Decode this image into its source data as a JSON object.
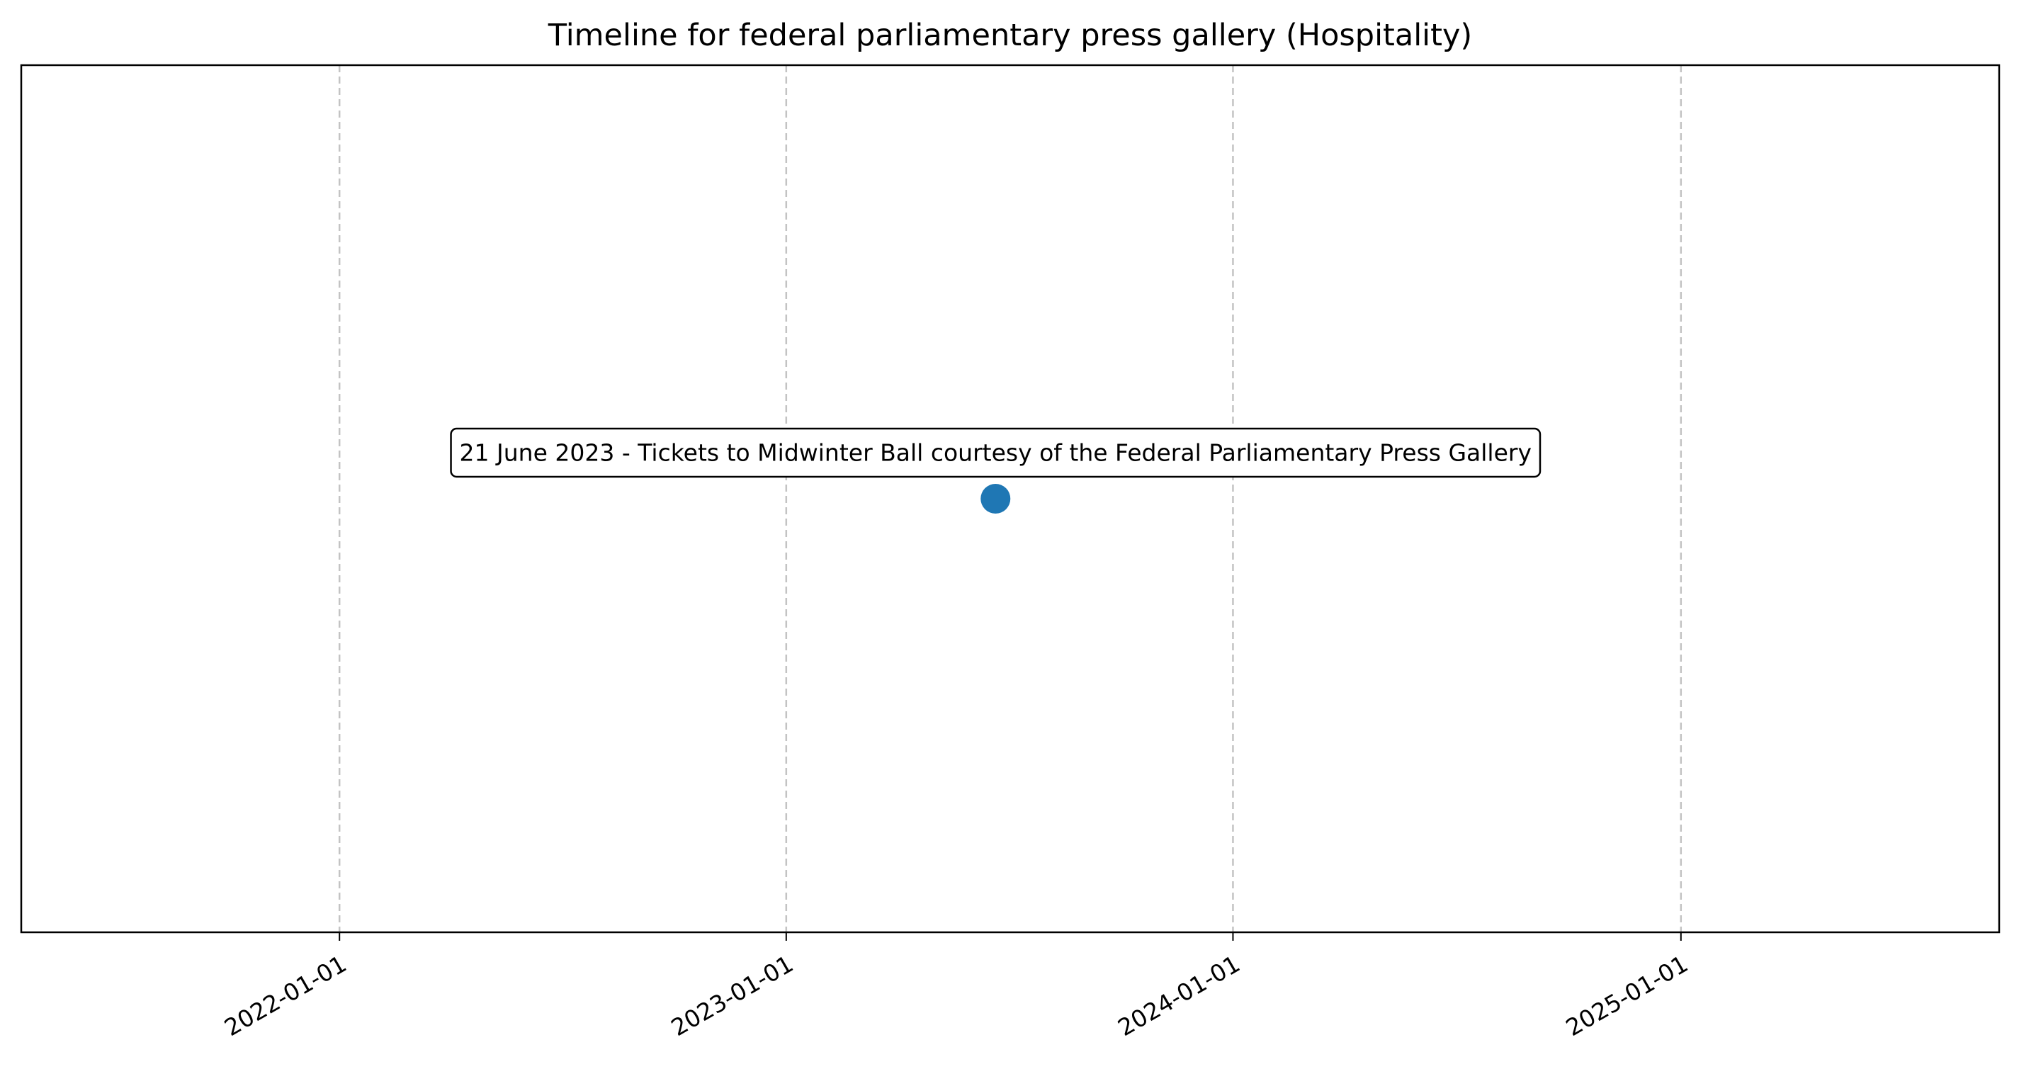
{
  "chart_data": {
    "type": "scatter",
    "title": "Timeline for federal parliamentary press gallery (Hospitality)",
    "xlabel": "",
    "ylabel": "",
    "x_axis": "date",
    "xlim": [
      "2021-04-16",
      "2025-09-18"
    ],
    "ylim": [
      -1,
      1
    ],
    "x_ticks": [
      "2022-01-01",
      "2023-01-01",
      "2024-01-01",
      "2025-01-01"
    ],
    "x_tick_rotation_deg": 30,
    "y_ticks_visible": false,
    "grid": {
      "x": true,
      "y": false,
      "style": "dashed"
    },
    "points": [
      {
        "x": "2023-06-21",
        "y": 0,
        "label": "21 June 2023 - Tickets to Midwinter Ball courtesy of the Federal Parliamentary Press Gallery"
      }
    ],
    "marker_color": "#1f77b4",
    "legend": "none"
  }
}
